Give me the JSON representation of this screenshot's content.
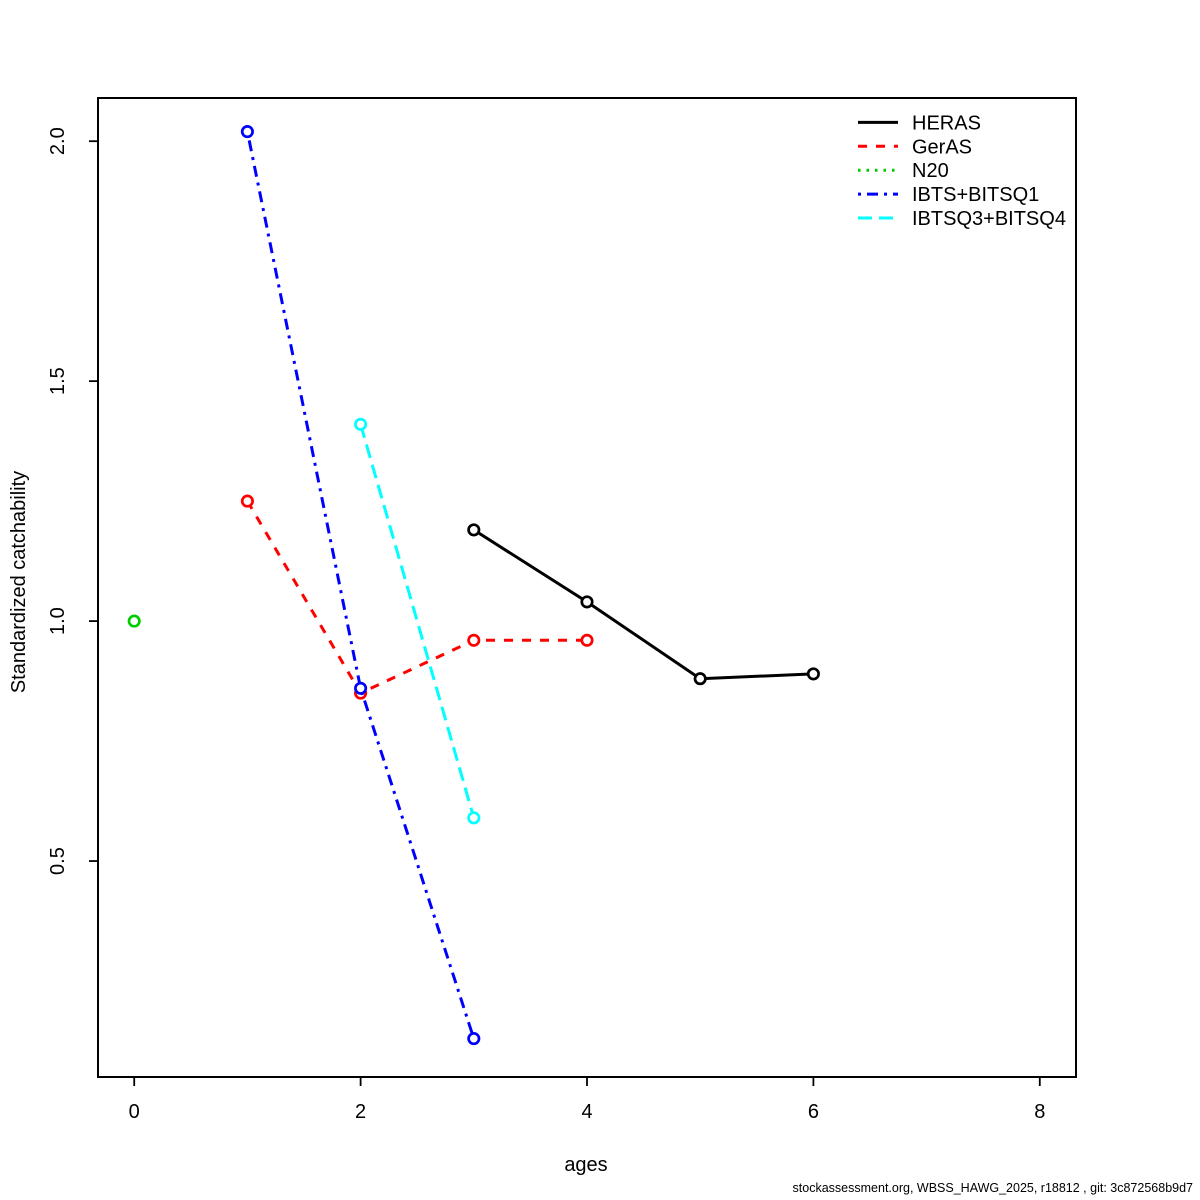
{
  "chart_data": {
    "type": "line",
    "title": "",
    "xlabel": "ages",
    "ylabel": "Standardized catchability",
    "xlim": [
      -0.32,
      8.32
    ],
    "ylim": [
      0.05,
      2.09
    ],
    "grid": false,
    "legend_position": "topright",
    "x_ticks": [
      0,
      2,
      4,
      6,
      8
    ],
    "x_tick_labels": [
      "0",
      "2",
      "4",
      "6",
      "8"
    ],
    "y_ticks": [
      0.5,
      1.0,
      1.5,
      2.0
    ],
    "y_tick_labels": [
      "0.5",
      "1.0",
      "1.5",
      "2.0"
    ],
    "series": [
      {
        "name": "HERAS",
        "color": "#000000",
        "linestyle": "solid",
        "marker": "open-circle",
        "x": [
          3,
          4,
          5,
          6
        ],
        "y": [
          1.19,
          1.04,
          0.88,
          0.89
        ]
      },
      {
        "name": "GerAS",
        "color": "#FF0000",
        "linestyle": "dashed",
        "marker": "open-circle",
        "x": [
          1,
          2,
          3,
          4
        ],
        "y": [
          1.25,
          0.85,
          0.96,
          0.96
        ]
      },
      {
        "name": "N20",
        "color": "#00CC00",
        "linestyle": "dotted",
        "marker": "open-circle",
        "x": [
          0
        ],
        "y": [
          1.0
        ]
      },
      {
        "name": "IBTS+BITSQ1",
        "color": "#0000FF",
        "linestyle": "dotdash",
        "marker": "open-circle",
        "x": [
          1,
          2,
          3
        ],
        "y": [
          2.02,
          0.86,
          0.13
        ]
      },
      {
        "name": "IBTSQ3+BITSQ4",
        "color": "#00FFFF",
        "linestyle": "longdash",
        "marker": "open-circle",
        "x": [
          2,
          3
        ],
        "y": [
          1.41,
          0.59
        ]
      }
    ],
    "footer": "stockassessment.org, WBSS_HAWG_2025, r18812 , git: 3c872568b9d7"
  }
}
